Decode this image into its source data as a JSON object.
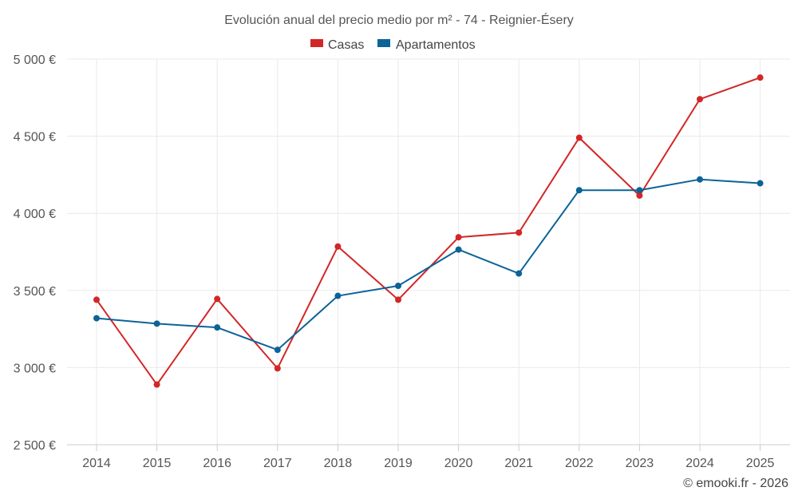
{
  "chart_data": {
    "type": "line",
    "title": "Evolución anual del precio medio por m² - 74 - Reignier-Ésery",
    "categories": [
      "2014",
      "2015",
      "2016",
      "2017",
      "2018",
      "2019",
      "2020",
      "2021",
      "2022",
      "2023",
      "2024",
      "2025"
    ],
    "series": [
      {
        "name": "Casas",
        "color": "#d32626",
        "values": [
          3440,
          2890,
          3445,
          2995,
          3785,
          3440,
          3845,
          3875,
          4490,
          4115,
          4740,
          4880
        ]
      },
      {
        "name": "Apartamentos",
        "color": "#0b6398",
        "values": [
          3320,
          3285,
          3260,
          3115,
          3465,
          3530,
          3765,
          3610,
          4150,
          4150,
          4220,
          4195
        ]
      }
    ],
    "ylim": [
      2500,
      5000
    ],
    "yticks": [
      2500,
      3000,
      3500,
      4000,
      4500,
      5000
    ],
    "ytick_labels": [
      "2 500 €",
      "3 000 €",
      "3 500 €",
      "4 000 €",
      "4 500 €",
      "5 000 €"
    ],
    "legend_position": "top-center",
    "grid": true,
    "credit": "© emooki.fr - 2026"
  }
}
